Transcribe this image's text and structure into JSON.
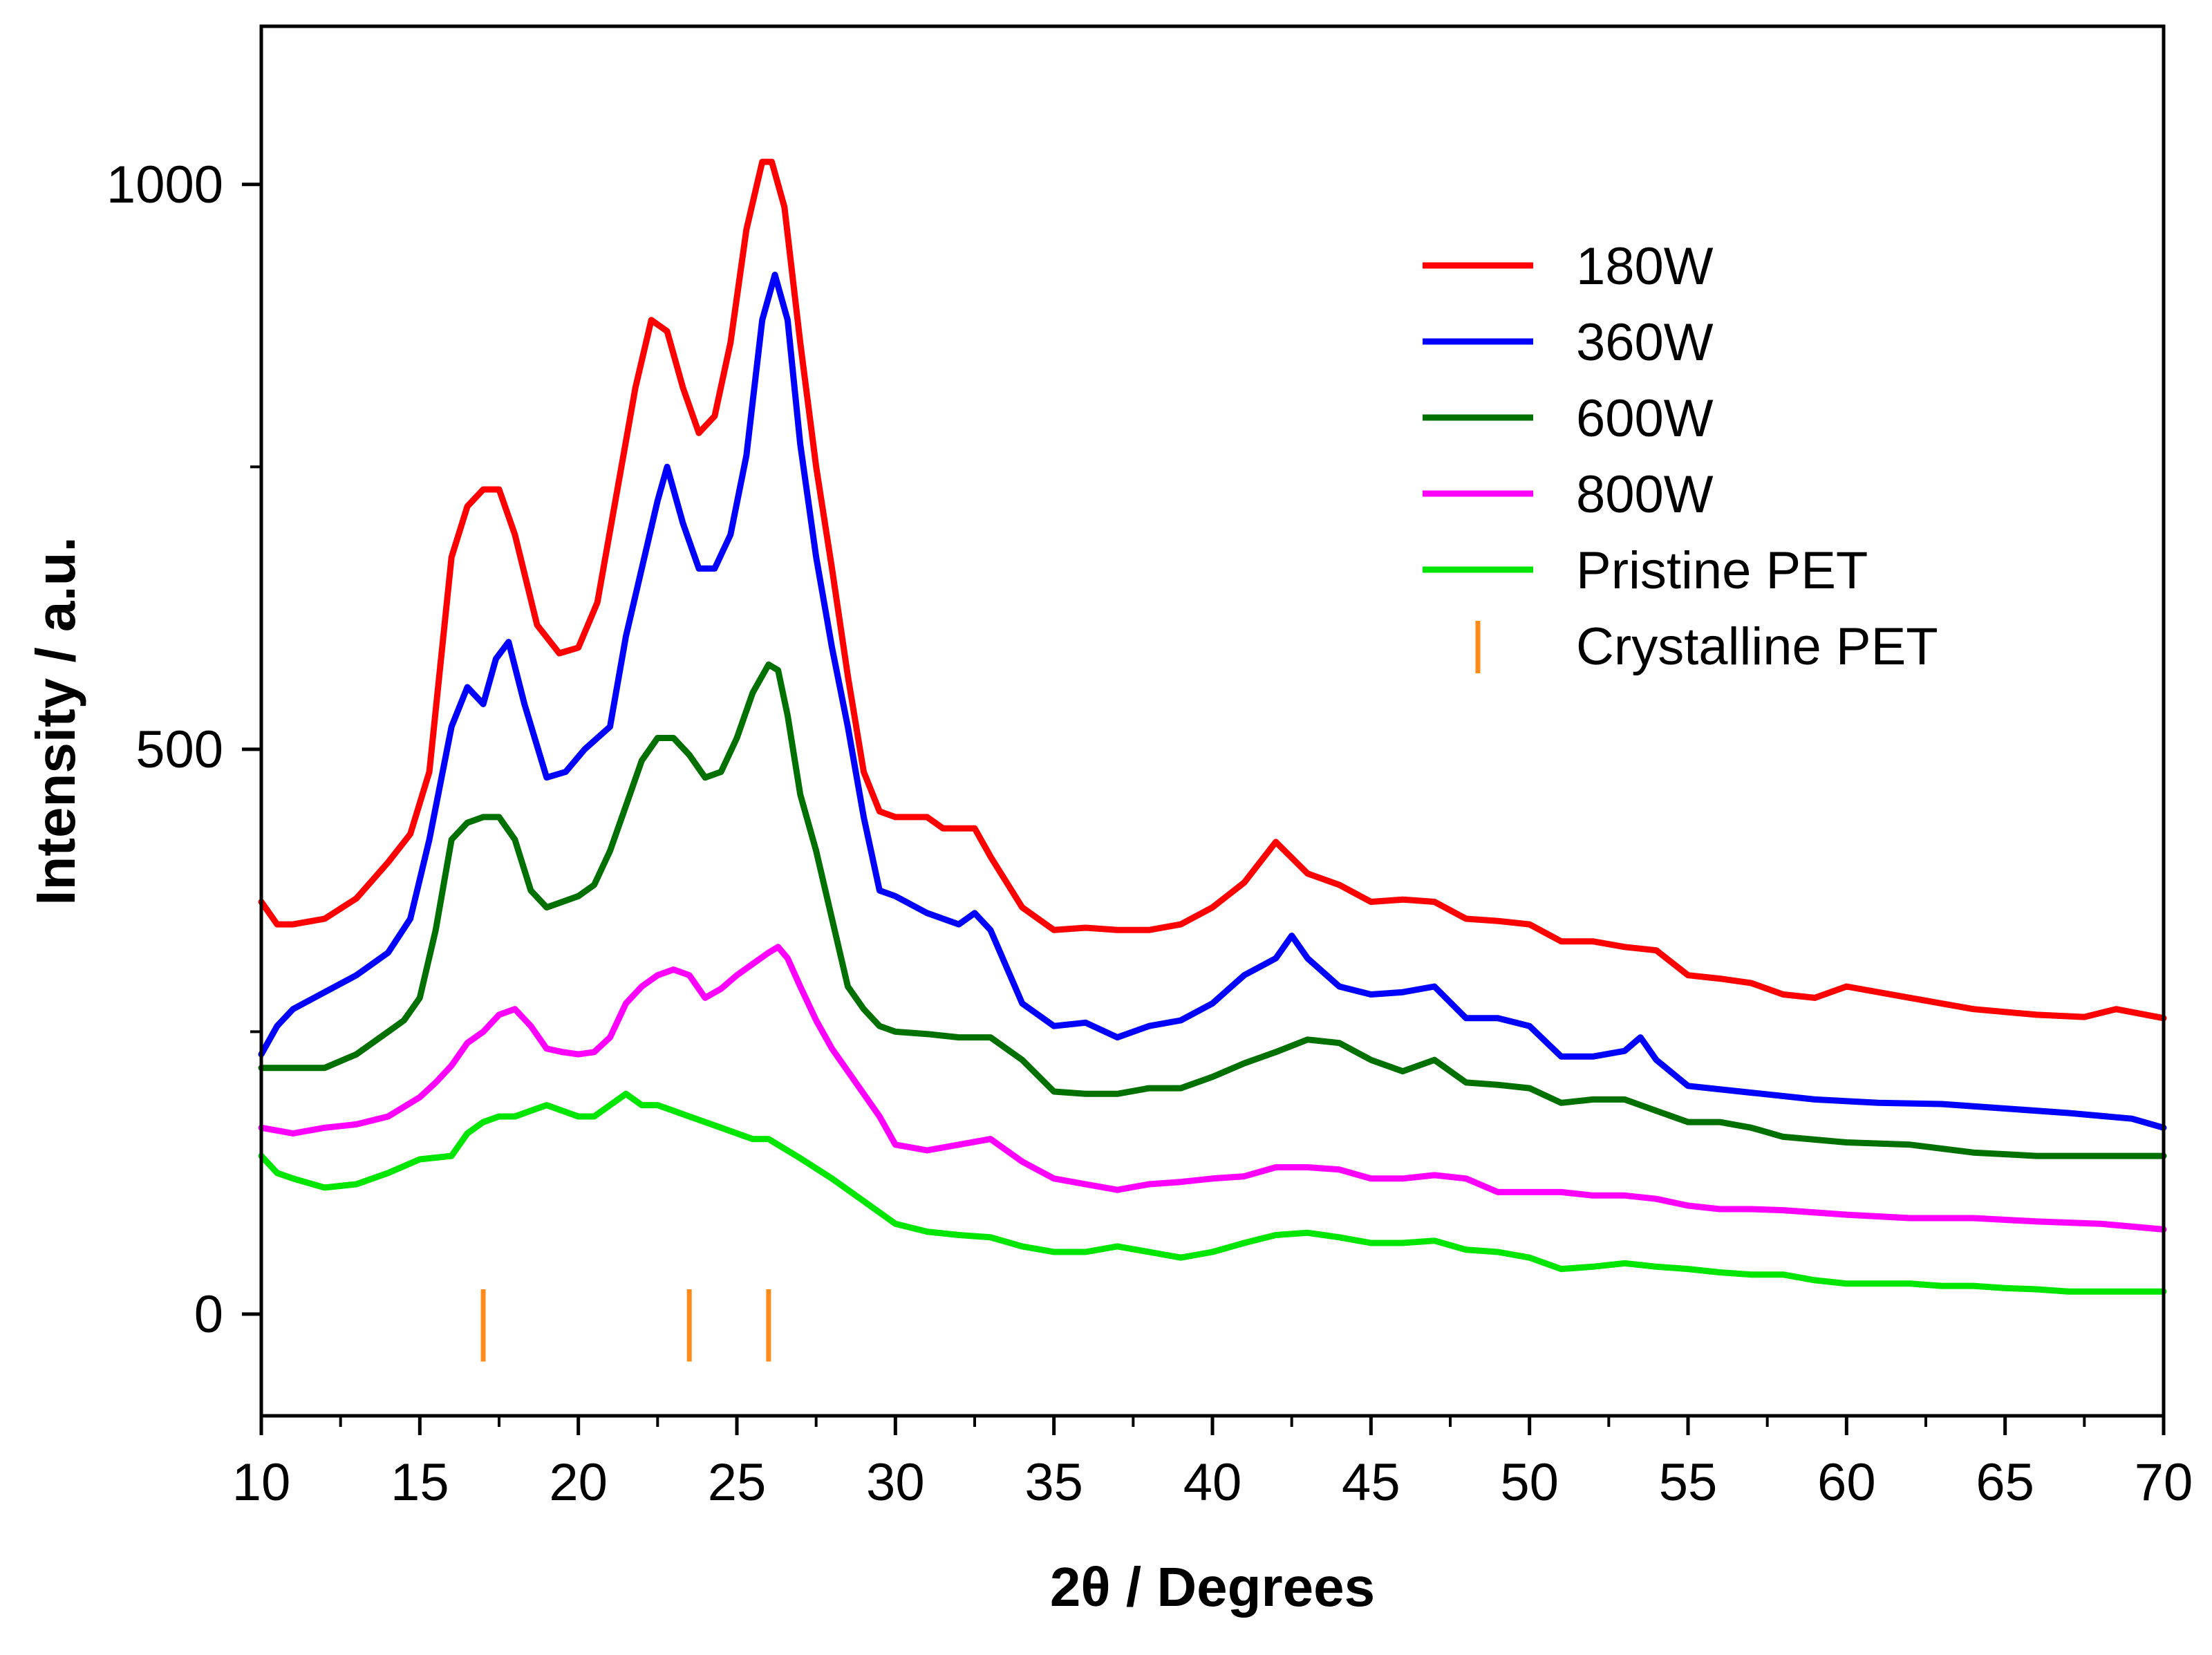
{
  "chart_data": {
    "type": "line",
    "title": "",
    "xlabel": "2θ / Degrees",
    "ylabel": "Intensity / a.u.",
    "xlim": [
      10,
      70
    ],
    "ylim": [
      -90,
      1140
    ],
    "xticks": [
      10,
      15,
      20,
      25,
      30,
      35,
      40,
      45,
      50,
      55,
      60,
      65,
      70
    ],
    "xtick_labels": [
      "10",
      "15",
      "20",
      "25",
      "30",
      "35",
      "40",
      "45",
      "50",
      "55",
      "60",
      "65",
      "70"
    ],
    "yticks": [
      0,
      500,
      1000
    ],
    "ytick_labels": [
      "0",
      "500",
      "1000"
    ],
    "grid": false,
    "legend_position": "top-right",
    "series": [
      {
        "name": "180W",
        "color": "#ff0000",
        "x": [
          10,
          10.5,
          11,
          12,
          13,
          14,
          14.7,
          15.3,
          16,
          16.5,
          17,
          17.5,
          18,
          18.7,
          19.4,
          20,
          20.6,
          21.2,
          21.8,
          22.3,
          22.8,
          23.3,
          23.8,
          24.3,
          24.8,
          25.3,
          25.8,
          26.1,
          26.5,
          27,
          27.5,
          28,
          28.5,
          29,
          29.5,
          30,
          31,
          31.5,
          32,
          32.5,
          33,
          34,
          35,
          36,
          37,
          38,
          39,
          40,
          41,
          42,
          43,
          44,
          45,
          46,
          47,
          48,
          49,
          50,
          51,
          52,
          53,
          54,
          55,
          56,
          57,
          58,
          59,
          60,
          62,
          64,
          66,
          67.5,
          68.5,
          70
        ],
        "values": [
          365,
          345,
          345,
          350,
          368,
          400,
          425,
          480,
          670,
          715,
          730,
          730,
          690,
          610,
          585,
          590,
          630,
          725,
          820,
          880,
          870,
          820,
          780,
          795,
          860,
          960,
          1020,
          1020,
          980,
          860,
          750,
          660,
          565,
          480,
          445,
          440,
          440,
          430,
          430,
          430,
          405,
          360,
          340,
          342,
          340,
          340,
          345,
          360,
          382,
          418,
          390,
          380,
          365,
          367,
          365,
          350,
          348,
          345,
          330,
          330,
          325,
          322,
          300,
          297,
          293,
          283,
          280,
          290,
          280,
          270,
          265,
          263,
          270,
          262
        ]
      },
      {
        "name": "360W",
        "color": "#0000ff",
        "x": [
          10,
          10.5,
          11,
          12,
          13,
          14,
          14.7,
          15.3,
          16,
          16.5,
          17,
          17.4,
          17.8,
          18.3,
          19,
          19.6,
          20.2,
          21,
          21.5,
          22,
          22.5,
          22.8,
          23.3,
          23.8,
          24.3,
          24.8,
          25.3,
          25.8,
          26.2,
          26.6,
          27,
          27.5,
          28,
          28.5,
          29,
          29.5,
          30,
          31,
          32,
          32.5,
          33,
          34,
          35,
          36,
          37,
          38,
          39,
          40,
          41,
          42,
          42.5,
          43,
          44,
          45,
          46,
          47,
          48,
          49,
          50,
          51,
          52,
          53,
          53.5,
          54,
          55,
          57,
          59,
          61,
          63,
          65,
          67,
          69,
          70
        ],
        "values": [
          230,
          255,
          270,
          285,
          300,
          320,
          350,
          420,
          520,
          555,
          540,
          580,
          595,
          540,
          475,
          480,
          500,
          520,
          600,
          660,
          720,
          750,
          700,
          660,
          660,
          690,
          760,
          880,
          920,
          880,
          770,
          670,
          590,
          520,
          440,
          375,
          370,
          355,
          345,
          355,
          340,
          275,
          255,
          258,
          245,
          255,
          260,
          275,
          300,
          315,
          335,
          315,
          290,
          283,
          285,
          290,
          262,
          262,
          255,
          228,
          228,
          233,
          245,
          225,
          202,
          196,
          190,
          187,
          186,
          182,
          178,
          173,
          165
        ]
      },
      {
        "name": "600W",
        "color": "#007000",
        "x": [
          10,
          11,
          12,
          13,
          14,
          14.5,
          15,
          15.5,
          16,
          16.5,
          17,
          17.5,
          18,
          18.5,
          19,
          19.5,
          20,
          20.5,
          21,
          21.5,
          22,
          22.5,
          23,
          23.5,
          24,
          24.5,
          25,
          25.5,
          26,
          26.3,
          26.6,
          27,
          27.5,
          28,
          28.5,
          29,
          29.5,
          30,
          31,
          32,
          33,
          34,
          35,
          36,
          37,
          38,
          39,
          40,
          41,
          42,
          43,
          44,
          45,
          46,
          47,
          48,
          49,
          50,
          51,
          52,
          53,
          54,
          55,
          56,
          57,
          58,
          60,
          62,
          64,
          66,
          68,
          70
        ],
        "values": [
          218,
          218,
          218,
          230,
          250,
          260,
          280,
          340,
          420,
          435,
          440,
          440,
          420,
          375,
          360,
          365,
          370,
          380,
          410,
          450,
          490,
          510,
          510,
          495,
          475,
          480,
          510,
          550,
          575,
          570,
          530,
          460,
          410,
          350,
          290,
          270,
          255,
          250,
          248,
          245,
          245,
          225,
          197,
          195,
          195,
          200,
          200,
          210,
          222,
          232,
          243,
          240,
          225,
          215,
          225,
          205,
          203,
          200,
          187,
          190,
          190,
          180,
          170,
          170,
          165,
          157,
          152,
          150,
          143,
          140,
          140,
          140
        ]
      },
      {
        "name": "800W",
        "color": "#ff00ff",
        "x": [
          10,
          11,
          12,
          13,
          14,
          15,
          15.5,
          16,
          16.5,
          17,
          17.5,
          18,
          18.5,
          19,
          19.5,
          20,
          20.5,
          21,
          21.5,
          22,
          22.5,
          23,
          23.5,
          24,
          24.5,
          25,
          25.5,
          26,
          26.3,
          26.6,
          27,
          27.5,
          28,
          28.5,
          29,
          29.5,
          30,
          31,
          32,
          33,
          34,
          35,
          36,
          37,
          38,
          39,
          40,
          41,
          42,
          43,
          44,
          45,
          46,
          47,
          48,
          49,
          50,
          51,
          52,
          53,
          54,
          55,
          56,
          57,
          58,
          59,
          60,
          62,
          64,
          66,
          68,
          70
        ],
        "values": [
          165,
          160,
          165,
          168,
          175,
          192,
          205,
          220,
          240,
          250,
          265,
          270,
          255,
          235,
          232,
          230,
          232,
          245,
          275,
          290,
          300,
          305,
          300,
          280,
          288,
          300,
          310,
          320,
          325,
          315,
          290,
          260,
          235,
          215,
          195,
          175,
          150,
          145,
          150,
          155,
          135,
          120,
          115,
          110,
          115,
          117,
          120,
          122,
          130,
          130,
          128,
          120,
          120,
          123,
          120,
          108,
          108,
          108,
          105,
          105,
          102,
          96,
          93,
          93,
          92,
          90,
          88,
          85,
          85,
          82,
          80,
          75
        ]
      },
      {
        "name": "Pristine PET",
        "color": "#00e600",
        "x": [
          10,
          10.5,
          11,
          12,
          13,
          14,
          15,
          16,
          16.5,
          17,
          17.5,
          18,
          18.5,
          19,
          19.5,
          20,
          20.5,
          21,
          21.5,
          22,
          22.5,
          23,
          23.5,
          24,
          24.5,
          25,
          25.5,
          26,
          27,
          28,
          29,
          30,
          31,
          32,
          33,
          34,
          35,
          36,
          37,
          38,
          39,
          40,
          41,
          42,
          43,
          44,
          45,
          46,
          47,
          48,
          49,
          50,
          51,
          52,
          53,
          54,
          55,
          56,
          57,
          58,
          59,
          60,
          61,
          62,
          63,
          64,
          65,
          66,
          67,
          68,
          69,
          70
        ],
        "values": [
          140,
          125,
          120,
          112,
          115,
          125,
          137,
          140,
          160,
          170,
          175,
          175,
          180,
          185,
          180,
          175,
          175,
          185,
          195,
          185,
          185,
          180,
          175,
          170,
          165,
          160,
          155,
          155,
          138,
          120,
          100,
          80,
          73,
          70,
          68,
          60,
          55,
          55,
          60,
          55,
          50,
          55,
          63,
          70,
          72,
          68,
          63,
          63,
          65,
          57,
          55,
          50,
          40,
          42,
          45,
          42,
          40,
          37,
          35,
          35,
          30,
          27,
          27,
          27,
          25,
          25,
          23,
          22,
          20,
          20,
          20,
          20
        ]
      }
    ],
    "markers": {
      "name": "Crystalline PET",
      "color": "#ff8c1a",
      "x": [
        17,
        23.5,
        26
      ],
      "y_range": [
        -42,
        22
      ]
    }
  }
}
